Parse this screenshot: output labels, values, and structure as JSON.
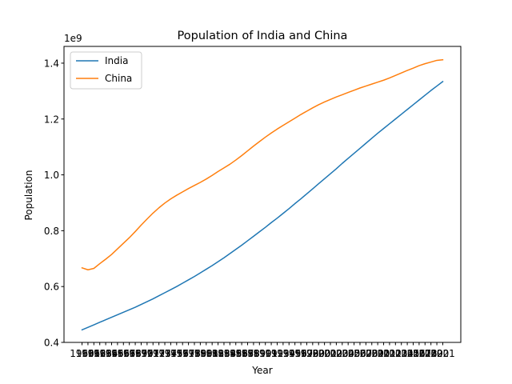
{
  "chart_data": {
    "type": "line",
    "title": "Population of India and China",
    "xlabel": "Year",
    "ylabel": "Population",
    "offset_label": "1e9",
    "ylim": [
      0.4,
      1.46
    ],
    "yticks": [
      0.4,
      0.6,
      0.8,
      1.0,
      1.2,
      1.4
    ],
    "ytick_labels": [
      "0.4",
      "0.6",
      "0.8",
      "1.0",
      "1.2",
      "1.4"
    ],
    "grid": false,
    "legend": "top-left",
    "x": [
      1960,
      1961,
      1962,
      1963,
      1964,
      1965,
      1966,
      1967,
      1968,
      1969,
      1970,
      1971,
      1972,
      1973,
      1974,
      1975,
      1976,
      1977,
      1978,
      1979,
      1980,
      1981,
      1982,
      1983,
      1984,
      1985,
      1986,
      1987,
      1988,
      1989,
      1990,
      1991,
      1992,
      1993,
      1994,
      1995,
      1996,
      1997,
      1998,
      1999,
      2000,
      2001,
      2002,
      2003,
      2004,
      2005,
      2006,
      2007,
      2008,
      2009,
      2010,
      2011,
      2012,
      2013,
      2014,
      2015,
      2016,
      2017,
      2018,
      2019,
      2020,
      2021
    ],
    "series": [
      {
        "name": "India",
        "color": "#1f77b4",
        "values": [
          0.445,
          0.454,
          0.463,
          0.472,
          0.481,
          0.49,
          0.499,
          0.508,
          0.517,
          0.526,
          0.536,
          0.546,
          0.556,
          0.567,
          0.578,
          0.589,
          0.6,
          0.612,
          0.624,
          0.636,
          0.649,
          0.662,
          0.675,
          0.689,
          0.703,
          0.718,
          0.733,
          0.748,
          0.764,
          0.78,
          0.796,
          0.812,
          0.829,
          0.845,
          0.862,
          0.879,
          0.897,
          0.914,
          0.932,
          0.95,
          0.968,
          0.986,
          1.004,
          1.022,
          1.041,
          1.059,
          1.077,
          1.095,
          1.113,
          1.131,
          1.149,
          1.166,
          1.183,
          1.2,
          1.217,
          1.234,
          1.251,
          1.268,
          1.285,
          1.302,
          1.318,
          1.334
        ]
      },
      {
        "name": "China",
        "color": "#ff7f0e",
        "values": [
          0.667,
          0.66,
          0.665,
          0.682,
          0.698,
          0.715,
          0.735,
          0.755,
          0.775,
          0.797,
          0.82,
          0.842,
          0.863,
          0.882,
          0.899,
          0.914,
          0.927,
          0.939,
          0.951,
          0.962,
          0.973,
          0.985,
          0.998,
          1.012,
          1.025,
          1.038,
          1.053,
          1.069,
          1.086,
          1.103,
          1.119,
          1.135,
          1.15,
          1.164,
          1.177,
          1.19,
          1.203,
          1.216,
          1.228,
          1.24,
          1.251,
          1.261,
          1.27,
          1.279,
          1.287,
          1.295,
          1.303,
          1.311,
          1.318,
          1.325,
          1.332,
          1.339,
          1.347,
          1.356,
          1.365,
          1.374,
          1.382,
          1.391,
          1.398,
          1.404,
          1.41,
          1.412
        ]
      }
    ]
  }
}
